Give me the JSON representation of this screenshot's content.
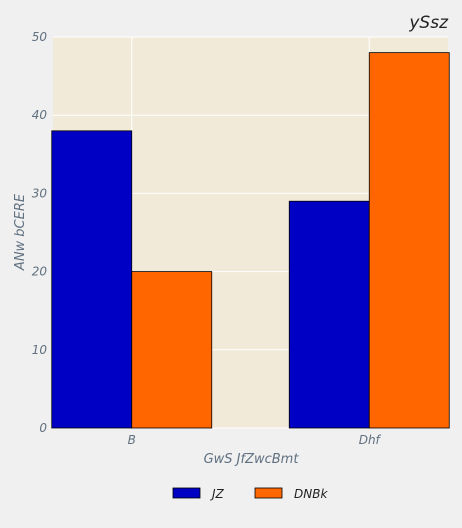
{
  "chart_data": {
    "type": "bar",
    "title": "ySsz",
    "xlabel": "GwS JfZwcBmt",
    "ylabel": "ANw bCERE",
    "categories": [
      "B",
      "Dhf"
    ],
    "ylim": [
      0,
      50
    ],
    "yticks": [
      0,
      10,
      20,
      30,
      40,
      50
    ],
    "grid": true,
    "legend_position": "bottom-center",
    "series": [
      {
        "name": "JZ",
        "values": [
          38,
          29
        ],
        "color": "#0000c4"
      },
      {
        "name": "DNBk",
        "values": [
          20,
          48
        ],
        "color": "#ff6600"
      }
    ]
  },
  "colors": {
    "plot_background": "#f1ead8",
    "page_background": "#f0f0f0",
    "grid": "#ffffff"
  }
}
